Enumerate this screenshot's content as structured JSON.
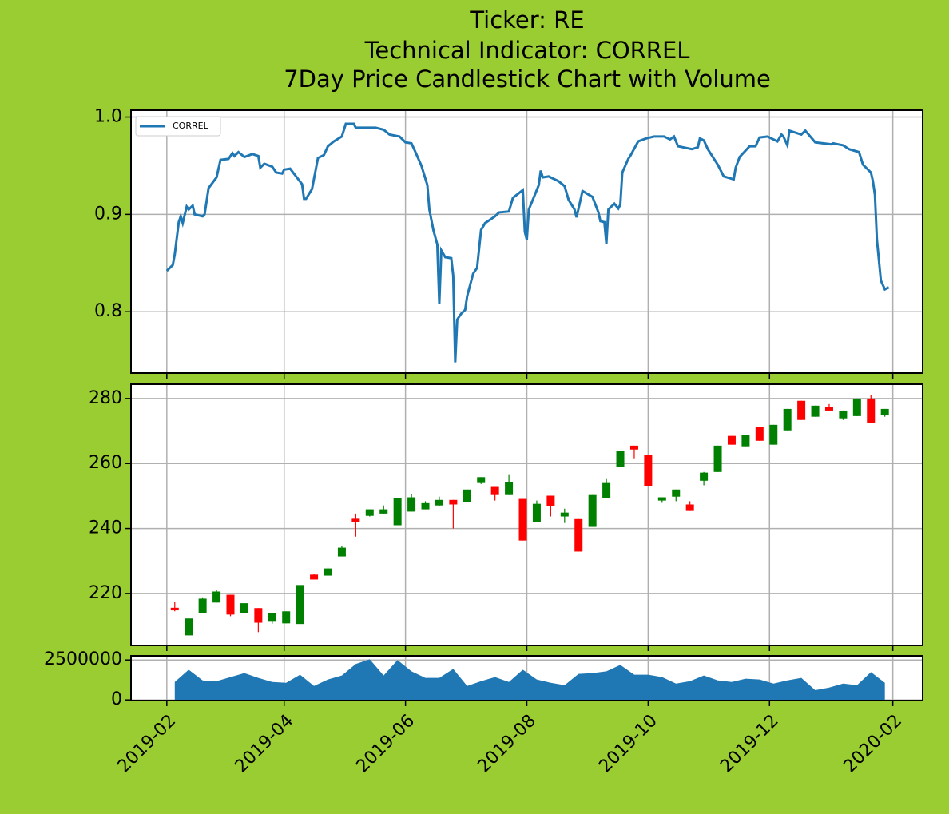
{
  "chart_data": [
    {
      "type": "line",
      "title": [
        "Ticker: RE",
        "Technical Indicator: CORREL",
        "7Day Price Candlestick Chart with Volume"
      ],
      "legend": "upper left",
      "grid": true,
      "ylim": [
        0.737,
        1.007
      ],
      "yticks": [
        0.8,
        0.9,
        {
          "value": 1.0,
          "label": "1.0"
        }
      ],
      "series": [
        {
          "name": "CORREL",
          "color": "#1f77b4",
          "x": [
            "2019-02-01",
            "2019-02-04",
            "2019-02-05",
            "2019-02-07",
            "2019-02-08",
            "2019-02-09",
            "2019-02-11",
            "2019-02-12",
            "2019-02-14",
            "2019-02-15",
            "2019-02-19",
            "2019-02-20",
            "2019-02-22",
            "2019-02-26",
            "2019-02-28",
            "2019-03-04",
            "2019-03-06",
            "2019-03-07",
            "2019-03-09",
            "2019-03-12",
            "2019-03-16",
            "2019-03-19",
            "2019-03-20",
            "2019-03-22",
            "2019-03-26",
            "2019-03-28",
            "2019-03-31",
            "2019-04-01",
            "2019-04-04",
            "2019-04-07",
            "2019-04-10",
            "2019-04-11",
            "2019-04-12",
            "2019-04-15",
            "2019-04-18",
            "2019-04-21",
            "2019-04-23",
            "2019-04-26",
            "2019-04-30",
            "2019-05-02",
            "2019-05-06",
            "2019-05-07",
            "2019-05-17",
            "2019-05-21",
            "2019-05-24",
            "2019-05-29",
            "2019-06-01",
            "2019-06-04",
            "2019-06-06",
            "2019-06-09",
            "2019-06-12",
            "2019-06-13",
            "2019-06-15",
            "2019-06-17",
            "2019-06-18",
            "2019-06-19",
            "2019-06-21",
            "2019-06-24",
            "2019-06-25",
            "2019-06-26",
            "2019-06-27",
            "2019-06-29",
            "2019-07-01",
            "2019-07-02",
            "2019-07-05",
            "2019-07-07",
            "2019-07-09",
            "2019-07-11",
            "2019-07-16",
            "2019-07-18",
            "2019-07-23",
            "2019-07-25",
            "2019-07-30",
            "2019-07-31",
            "2019-08-01",
            "2019-08-02",
            "2019-08-05",
            "2019-08-07",
            "2019-08-08",
            "2019-08-09",
            "2019-08-12",
            "2019-08-17",
            "2019-08-20",
            "2019-08-22",
            "2019-08-25",
            "2019-08-26",
            "2019-08-29",
            "2019-09-03",
            "2019-09-06",
            "2019-09-07",
            "2019-09-09",
            "2019-09-10",
            "2019-09-11",
            "2019-09-14",
            "2019-09-16",
            "2019-09-17",
            "2019-09-18",
            "2019-09-21",
            "2019-09-22",
            "2019-09-26",
            "2019-09-30",
            "2019-10-04",
            "2019-10-09",
            "2019-10-12",
            "2019-10-14",
            "2019-10-16",
            "2019-10-23",
            "2019-10-26",
            "2019-10-27",
            "2019-10-29",
            "2019-10-31",
            "2019-11-05",
            "2019-11-08",
            "2019-11-13",
            "2019-11-14",
            "2019-11-16",
            "2019-11-21",
            "2019-11-24",
            "2019-11-26",
            "2019-11-30",
            "2019-12-05",
            "2019-12-07",
            "2019-12-08",
            "2019-12-10",
            "2019-12-11",
            "2019-12-17",
            "2019-12-19",
            "2019-12-24",
            "2020-01-01",
            "2020-01-02",
            "2020-01-07",
            "2020-01-10",
            "2020-01-15",
            "2020-01-17",
            "2020-01-21",
            "2020-01-22",
            "2020-01-23",
            "2020-01-24",
            "2020-01-26",
            "2020-01-28",
            "2020-01-30"
          ],
          "values": [
            0.842,
            0.848,
            0.859,
            0.892,
            0.898,
            0.891,
            0.908,
            0.905,
            0.909,
            0.9,
            0.898,
            0.9,
            0.927,
            0.938,
            0.956,
            0.957,
            0.963,
            0.96,
            0.964,
            0.959,
            0.962,
            0.96,
            0.948,
            0.952,
            0.949,
            0.943,
            0.942,
            0.946,
            0.947,
            0.939,
            0.931,
            0.916,
            0.916,
            0.926,
            0.958,
            0.961,
            0.97,
            0.975,
            0.98,
            0.993,
            0.993,
            0.989,
            0.989,
            0.987,
            0.982,
            0.98,
            0.974,
            0.973,
            0.964,
            0.95,
            0.93,
            0.905,
            0.884,
            0.869,
            0.808,
            0.863,
            0.856,
            0.855,
            0.837,
            0.748,
            0.792,
            0.798,
            0.802,
            0.816,
            0.839,
            0.845,
            0.884,
            0.891,
            0.898,
            0.902,
            0.903,
            0.917,
            0.925,
            0.882,
            0.874,
            0.905,
            0.92,
            0.93,
            0.945,
            0.938,
            0.939,
            0.934,
            0.929,
            0.915,
            0.905,
            0.897,
            0.924,
            0.918,
            0.902,
            0.893,
            0.892,
            0.87,
            0.905,
            0.911,
            0.906,
            0.91,
            0.943,
            0.957,
            0.96,
            0.975,
            0.978,
            0.98,
            0.98,
            0.977,
            0.98,
            0.97,
            0.967,
            0.969,
            0.978,
            0.976,
            0.967,
            0.951,
            0.939,
            0.936,
            0.948,
            0.959,
            0.97,
            0.97,
            0.979,
            0.98,
            0.975,
            0.982,
            0.98,
            0.971,
            0.986,
            0.982,
            0.986,
            0.974,
            0.972,
            0.973,
            0.971,
            0.967,
            0.964,
            0.951,
            0.943,
            0.934,
            0.92,
            0.874,
            0.832,
            0.823,
            0.825
          ]
        }
      ]
    },
    {
      "type": "candlestick",
      "grid": true,
      "up_color": "#008000",
      "down_color": "#ff0000",
      "ylim": [
        204,
        284.4
      ],
      "yticks": [
        220,
        240,
        260,
        280
      ],
      "x": [
        "2019-02-05",
        "2019-02-12",
        "2019-02-19",
        "2019-02-26",
        "2019-03-05",
        "2019-03-12",
        "2019-03-19",
        "2019-03-26",
        "2019-04-02",
        "2019-04-09",
        "2019-04-16",
        "2019-04-23",
        "2019-04-30",
        "2019-05-07",
        "2019-05-14",
        "2019-05-21",
        "2019-05-28",
        "2019-06-04",
        "2019-06-11",
        "2019-06-18",
        "2019-06-25",
        "2019-07-02",
        "2019-07-09",
        "2019-07-16",
        "2019-07-23",
        "2019-07-30",
        "2019-08-06",
        "2019-08-13",
        "2019-08-20",
        "2019-08-27",
        "2019-09-03",
        "2019-09-10",
        "2019-09-17",
        "2019-09-24",
        "2019-10-01",
        "2019-10-08",
        "2019-10-15",
        "2019-10-22",
        "2019-10-29",
        "2019-11-05",
        "2019-11-12",
        "2019-11-19",
        "2019-11-26",
        "2019-12-03",
        "2019-12-10",
        "2019-12-17",
        "2019-12-24",
        "2019-12-31",
        "2020-01-07",
        "2020-01-14",
        "2020-01-21",
        "2020-01-28"
      ],
      "open": [
        215.6,
        207.1,
        214.0,
        217.2,
        219.6,
        214.0,
        215.5,
        211.3,
        210.8,
        210.6,
        225.8,
        225.5,
        231.4,
        243.0,
        243.9,
        244.6,
        241.0,
        245.2,
        245.9,
        247.1,
        248.8,
        248.1,
        254.0,
        252.8,
        250.3,
        249.1,
        242.0,
        250.1,
        243.7,
        242.9,
        240.5,
        249.3,
        258.9,
        265.5,
        262.6,
        248.6,
        249.8,
        247.4,
        254.7,
        257.4,
        268.5,
        265.3,
        271.2,
        265.8,
        270.2,
        279.3,
        274.4,
        277.3,
        273.9,
        274.6,
        280.0,
        274.8
      ],
      "high": [
        217.3,
        212.3,
        218.8,
        221.1,
        219.6,
        217.0,
        215.5,
        214.0,
        214.5,
        222.6,
        226.0,
        228.0,
        234.6,
        244.6,
        245.9,
        247.1,
        249.3,
        250.6,
        248.4,
        249.8,
        248.8,
        252.0,
        255.8,
        252.8,
        256.7,
        249.1,
        248.6,
        250.1,
        246.1,
        242.9,
        250.3,
        255.2,
        263.8,
        265.5,
        262.6,
        249.6,
        252.0,
        248.4,
        257.4,
        265.5,
        268.5,
        268.7,
        271.2,
        271.9,
        276.8,
        279.3,
        277.8,
        278.3,
        276.3,
        280.0,
        281.0,
        276.8
      ],
      "low": [
        214.5,
        207.1,
        214.0,
        217.2,
        213.0,
        213.8,
        208.1,
        210.7,
        210.8,
        210.6,
        224.3,
        225.5,
        231.4,
        237.5,
        243.7,
        244.6,
        241.0,
        245.2,
        245.9,
        246.9,
        240.0,
        248.1,
        253.7,
        248.6,
        250.3,
        236.3,
        242.0,
        243.7,
        241.7,
        232.9,
        240.5,
        249.3,
        258.9,
        261.6,
        253.0,
        247.9,
        248.4,
        245.4,
        253.3,
        257.4,
        265.8,
        265.3,
        267.0,
        265.8,
        270.2,
        273.4,
        274.4,
        276.3,
        273.4,
        274.6,
        272.6,
        274.4
      ],
      "close": [
        214.8,
        212.3,
        218.4,
        220.6,
        213.5,
        217.0,
        211.0,
        214.0,
        214.5,
        222.6,
        224.3,
        227.7,
        234.1,
        242.0,
        245.9,
        245.9,
        249.3,
        249.6,
        247.8,
        248.8,
        247.4,
        252.0,
        255.8,
        250.3,
        254.2,
        236.3,
        247.6,
        246.9,
        244.9,
        232.9,
        250.3,
        254.0,
        263.8,
        264.3,
        253.0,
        249.6,
        252.0,
        245.4,
        257.2,
        265.5,
        265.8,
        268.7,
        267.0,
        271.9,
        276.8,
        273.4,
        277.8,
        276.3,
        276.3,
        280.0,
        272.6,
        276.8
      ]
    },
    {
      "type": "area",
      "grid": true,
      "color": "#1f77b4",
      "ylim": [
        -40000,
        2760000
      ],
      "yticks": [
        0,
        2500000
      ],
      "xlim": [
        "2019-01-14",
        "2020-02-16"
      ],
      "xticks": [
        {
          "value": "2019-02-01",
          "label": "2019-02"
        },
        {
          "value": "2019-04-01",
          "label": "2019-04"
        },
        {
          "value": "2019-06-01",
          "label": "2019-06"
        },
        {
          "value": "2019-08-01",
          "label": "2019-08"
        },
        {
          "value": "2019-10-01",
          "label": "2019-10"
        },
        {
          "value": "2019-12-01",
          "label": "2019-12"
        },
        {
          "value": "2020-02-01",
          "label": "2020-02"
        }
      ],
      "x": [
        "2019-02-05",
        "2019-02-12",
        "2019-02-19",
        "2019-02-26",
        "2019-03-05",
        "2019-03-12",
        "2019-03-19",
        "2019-03-26",
        "2019-04-02",
        "2019-04-09",
        "2019-04-16",
        "2019-04-23",
        "2019-04-30",
        "2019-05-07",
        "2019-05-14",
        "2019-05-21",
        "2019-05-28",
        "2019-06-04",
        "2019-06-11",
        "2019-06-18",
        "2019-06-25",
        "2019-07-02",
        "2019-07-09",
        "2019-07-16",
        "2019-07-23",
        "2019-07-30",
        "2019-08-06",
        "2019-08-13",
        "2019-08-20",
        "2019-08-27",
        "2019-09-03",
        "2019-09-10",
        "2019-09-17",
        "2019-09-24",
        "2019-10-01",
        "2019-10-08",
        "2019-10-15",
        "2019-10-22",
        "2019-10-29",
        "2019-11-05",
        "2019-11-12",
        "2019-11-19",
        "2019-11-26",
        "2019-12-03",
        "2019-12-10",
        "2019-12-17",
        "2019-12-24",
        "2019-12-31",
        "2020-01-07",
        "2020-01-14",
        "2020-01-21",
        "2020-01-28"
      ],
      "values": [
        1120000,
        1890000,
        1220000,
        1170000,
        1430000,
        1680000,
        1380000,
        1120000,
        1070000,
        1580000,
        870000,
        1280000,
        1530000,
        2250000,
        2550000,
        1530000,
        2500000,
        1790000,
        1380000,
        1380000,
        1940000,
        870000,
        1170000,
        1430000,
        1120000,
        1890000,
        1280000,
        1070000,
        920000,
        1630000,
        1680000,
        1790000,
        2190000,
        1580000,
        1580000,
        1430000,
        1020000,
        1170000,
        1530000,
        1220000,
        1120000,
        1330000,
        1280000,
        1020000,
        1220000,
        1380000,
        610000,
        770000,
        1020000,
        920000,
        1740000,
        1070000
      ]
    }
  ]
}
